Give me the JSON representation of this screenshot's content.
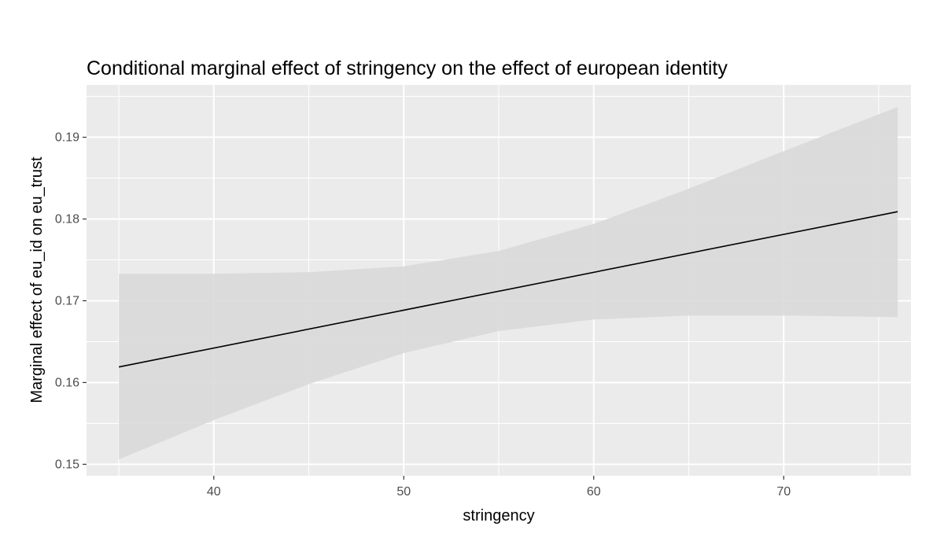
{
  "chart_data": {
    "type": "line",
    "title": "Conditional marginal effect of stringency on the effect of european identity",
    "xlabel": "stringency",
    "ylabel": "Marginal effect of eu_id on eu_trust",
    "xlim": [
      33.3,
      76.7
    ],
    "ylim": [
      0.1486,
      0.1964
    ],
    "x_ticks": [
      40,
      50,
      60,
      70
    ],
    "y_ticks": [
      0.15,
      0.16,
      0.17,
      0.18,
      0.19
    ],
    "x_tick_labels": [
      "40",
      "50",
      "60",
      "70"
    ],
    "y_tick_labels": [
      "0.15",
      "0.16",
      "0.17",
      "0.18",
      "0.19"
    ],
    "grid": true,
    "legend": "none",
    "colors": {
      "panel": "#ebebeb",
      "grid": "#ffffff",
      "band": "#d9d9d9",
      "line": "#000000"
    },
    "series": [
      {
        "x": [
          35,
          76
        ],
        "y": [
          0.1619,
          0.1809
        ]
      }
    ],
    "ribbon": {
      "x": [
        35,
        40,
        45,
        50,
        55,
        60,
        65,
        70,
        76
      ],
      "lower": [
        0.1506,
        0.1554,
        0.1598,
        0.1636,
        0.1663,
        0.1677,
        0.1682,
        0.1682,
        0.168
      ],
      "upper": [
        0.1733,
        0.1733,
        0.1735,
        0.1742,
        0.1761,
        0.1794,
        0.1837,
        0.1883,
        0.1937
      ]
    }
  }
}
